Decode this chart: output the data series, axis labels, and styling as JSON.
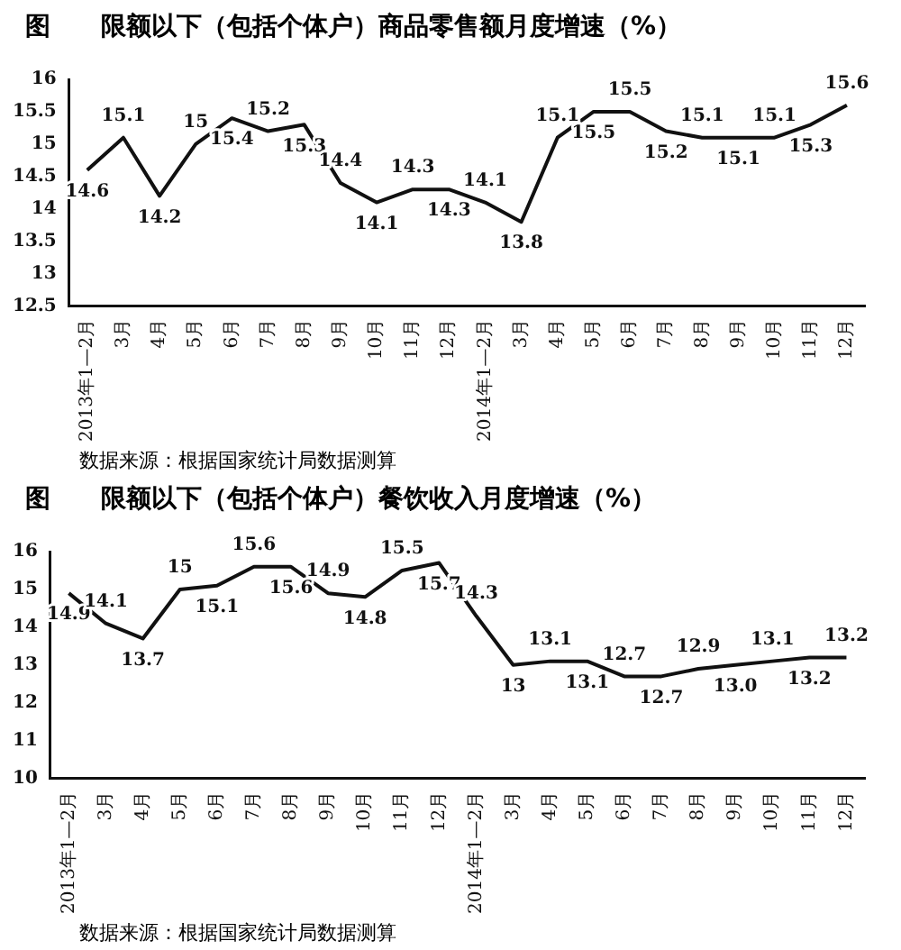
{
  "chart_data": [
    {
      "type": "line",
      "title": "图　　限额以下（包括个体户）商品零售额月度增速（%）",
      "categories": [
        "2013年1—2月",
        "3月",
        "4月",
        "5月",
        "6月",
        "7月",
        "8月",
        "9月",
        "10月",
        "11月",
        "12月",
        "2014年1—2月",
        "3月",
        "4月",
        "5月",
        "6月",
        "7月",
        "8月",
        "9月",
        "10月",
        "11月",
        "12月"
      ],
      "values": [
        14.6,
        15.1,
        14.2,
        15,
        15.4,
        15.2,
        15.3,
        14.4,
        14.1,
        14.3,
        14.3,
        14.1,
        13.8,
        15.1,
        15.5,
        15.5,
        15.2,
        15.1,
        15.1,
        15.1,
        15.3,
        15.6
      ],
      "value_labels": [
        "14.6",
        "15.1",
        "14.2",
        "15",
        "15.4",
        "15.2",
        "15.3",
        "14.4",
        "14.1",
        "14.3",
        "14.3",
        "14.1",
        "13.8",
        "15.1",
        "15.5",
        "15.5",
        "15.2",
        "15.1",
        "15.1",
        "15.1",
        "15.3",
        "15.6"
      ],
      "color": "#111111",
      "marker": "none",
      "grid": false,
      "legend": false,
      "ylim": [
        12.5,
        16
      ],
      "yticks": [
        12.5,
        13,
        13.5,
        14,
        14.5,
        15,
        15.5,
        16
      ],
      "annotations": [
        "数据来源：根据国家统计局数据测算"
      ]
    },
    {
      "type": "line",
      "title": "图　　限额以下（包括个体户）餐饮收入月度增速（%）",
      "categories": [
        "2013年1—2月",
        "3月",
        "4月",
        "5月",
        "6月",
        "7月",
        "8月",
        "9月",
        "10月",
        "11月",
        "12月",
        "2014年1—2月",
        "3月",
        "4月",
        "5月",
        "6月",
        "7月",
        "8月",
        "9月",
        "10月",
        "11月",
        "12月"
      ],
      "values": [
        14.9,
        14.1,
        13.7,
        15,
        15.1,
        15.6,
        15.6,
        14.9,
        14.8,
        15.5,
        15.7,
        14.3,
        13,
        13.1,
        13.1,
        12.7,
        12.7,
        12.9,
        13.0,
        13.1,
        13.2,
        13.2
      ],
      "value_labels": [
        "14.9",
        "14.1",
        "13.7",
        "15",
        "15.1",
        "15.6",
        "15.6",
        "14.9",
        "14.8",
        "15.5",
        "15.7",
        "14.3",
        "13",
        "13.1",
        "13.1",
        "12.7",
        "12.7",
        "12.9",
        "13.0",
        "13.1",
        "13.2",
        "13.2"
      ],
      "color": "#111111",
      "marker": "none",
      "grid": false,
      "legend": false,
      "ylim": [
        10,
        16
      ],
      "yticks": [
        10,
        11,
        12,
        13,
        14,
        15,
        16
      ],
      "annotations": [
        "数据来源：根据国家统计局数据测算"
      ]
    }
  ]
}
